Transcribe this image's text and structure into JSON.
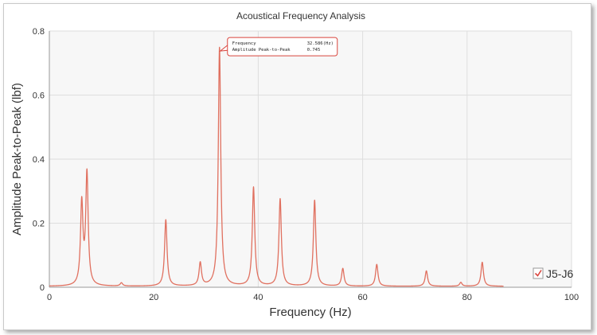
{
  "chart_data": {
    "type": "line",
    "title": "Acoustical Frequency Analysis",
    "xlabel": "Frequency (Hz)",
    "ylabel": "Amplitude Peak-to-Peak (lbf)",
    "xlim": [
      0,
      100
    ],
    "ylim": [
      0,
      0.8
    ],
    "x_ticks": [
      "0",
      "20",
      "40",
      "60",
      "80",
      "100"
    ],
    "y_ticks": [
      "0",
      "0.2",
      "0.4",
      "0.6",
      "0.8"
    ],
    "grid": true,
    "legend": "bottom-right",
    "series": [
      {
        "name": "J5-J6",
        "color": "#e0705f",
        "x_max": 87,
        "baseline": 0.003,
        "peaks": [
          {
            "x": 6.2,
            "y": 0.255
          },
          {
            "x": 7.2,
            "y": 0.348
          },
          {
            "x": 13.8,
            "y": 0.01
          },
          {
            "x": 22.3,
            "y": 0.207
          },
          {
            "x": 28.9,
            "y": 0.072
          },
          {
            "x": 32.586,
            "y": 0.745
          },
          {
            "x": 39.1,
            "y": 0.308
          },
          {
            "x": 44.2,
            "y": 0.272
          },
          {
            "x": 50.8,
            "y": 0.268
          },
          {
            "x": 56.2,
            "y": 0.055
          },
          {
            "x": 62.7,
            "y": 0.068
          },
          {
            "x": 72.2,
            "y": 0.048
          },
          {
            "x": 78.8,
            "y": 0.012
          },
          {
            "x": 82.9,
            "y": 0.075
          }
        ]
      }
    ],
    "tooltip": {
      "rows": [
        {
          "label": "Frequency",
          "value": "32.586",
          "unit": "(Hz)"
        },
        {
          "label": "Amplitude Peak-to-Peak",
          "value": "0.745",
          "unit": ""
        }
      ],
      "x": 32.586,
      "y": 0.745
    }
  }
}
